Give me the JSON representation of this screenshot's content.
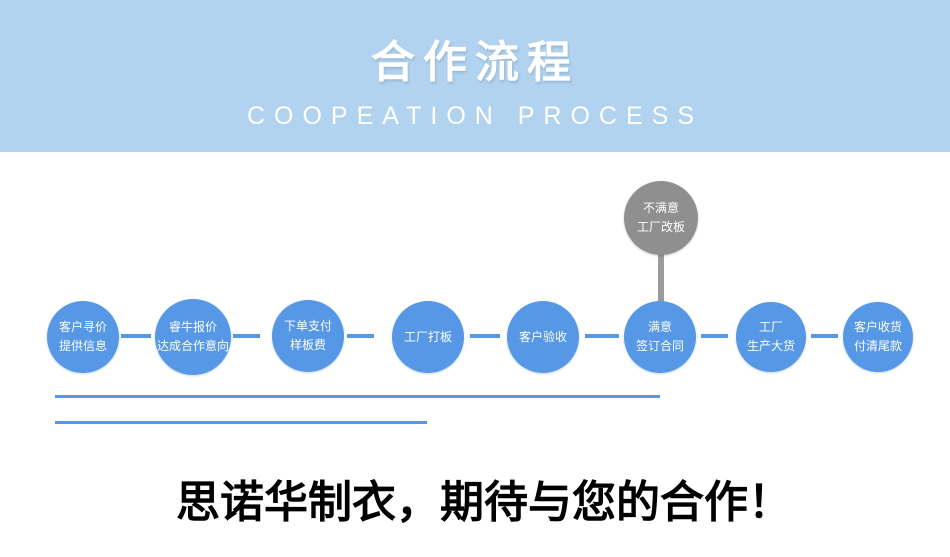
{
  "header": {
    "title": "合作流程",
    "subtitle": "COOPEATION PROCESS"
  },
  "flow": {
    "steps": [
      {
        "line1": "客户寻价",
        "line2": "提供信息"
      },
      {
        "line1": "睿牛报价",
        "line2": "达成合作意向"
      },
      {
        "line1": "下单支付",
        "line2": "样板费"
      },
      {
        "line1": "工厂打板"
      },
      {
        "line1": "客户验收"
      },
      {
        "line1": "满意",
        "line2": "签订合同"
      },
      {
        "line1": "工厂",
        "line2": "生产大货"
      },
      {
        "line1": "客户收货",
        "line2": "付清尾款"
      }
    ],
    "alt_step": {
      "line1": "不满意",
      "line2": "工厂改板"
    }
  },
  "footer": {
    "headline": "思诺华制衣，期待与您的合作！"
  },
  "colors": {
    "header_bg": "#b1d3ef",
    "circle_blue": "#5697e6",
    "line_blue": "#5697e6",
    "circle_gray": "#8f8f8f",
    "connector_gray": "#9b9b9b"
  }
}
